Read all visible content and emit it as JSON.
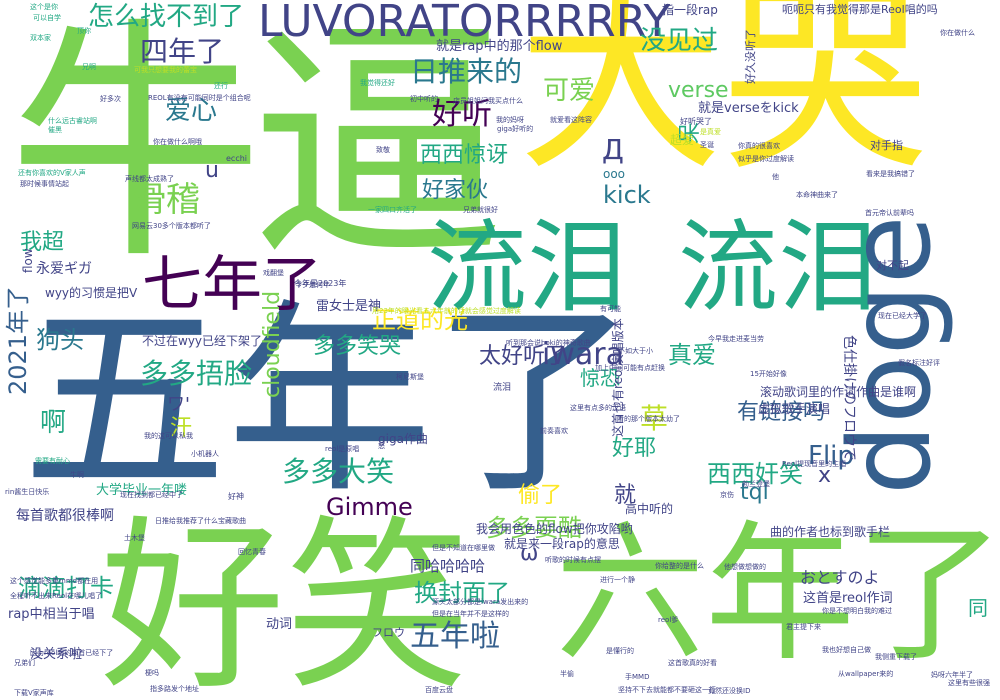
{
  "palette": [
    "#fde725",
    "#7ad151",
    "#22a884",
    "#2a788e",
    "#355f8d",
    "#414487",
    "#440154",
    "#5ec962",
    "#bddf26"
  ],
  "words": [
    "五年了",
    "大哭",
    "牛逼",
    "好笑",
    "六年了",
    "流泪",
    "流泪",
    "doge",
    "LUVORATORRRRRY",
    "七年了",
    "怎么找不到了",
    "四年了",
    "日推来的",
    "好听",
    "可爱",
    "没见过",
    "verse",
    "爱心",
    "滑稽",
    "西西惊讶",
    "好家伙",
    "我超",
    "正道的光",
    "多多笑哭",
    "狗头",
    "多多捂脸",
    "cloudfield",
    "太好听了",
    "惊恐",
    "真爱",
    "有链接吗",
    "iwara",
    "草",
    "2021年了",
    "啊",
    "汗",
    "好耶",
    "Flip",
    "多多大笑",
    "Gimme",
    "偷了",
    "就",
    "西西奸笑",
    "tql",
    "多多耍酷",
    "滴滴打卡",
    "换封面了",
    "五年啦",
    "同",
    "kick",
    "呆",
    "Д",
    "u",
    "ω",
    "x",
    "永爱ギガ",
    "ワ'",
    "おとすのよ",
    "同哈哈哈哈",
    "大学毕业一年喽",
    "每首歌都很棒啊",
    "rap中相当于唱",
    "没关系啦",
    "就是rap中的那个flow",
    "就是verseをkick",
    "这首是reol作词",
    "滚动歌词里的作词作曲是谁啊",
    "虚拟歌手演唱",
    "曲的作者也标到歌手栏",
    "我会用色色的flow把你攻陷哟",
    "就是来一段rap的意思",
    "不过在wyy已经下架了",
    "giga作曲",
    "雷女士是神",
    "wyy的习惯是把V",
    "色仕掛けのフロウで",
    "这首也有reol演唱版本",
    "超爱",
    "好久没听了",
    "指一段rap",
    "呃呃只有我觉得那是Reol唱的吗",
    "ooo",
    "对手指",
    "动词",
    "フロウ",
    "高中听的",
    "今年是2023年",
    "对不起",
    "好神",
    "flow",
    "这个是你",
    "可以自学",
    "双本家",
    "顶你",
    "兄啊",
    "可我只想要我的蕾宝",
    "还行",
    "什么远古睿站啊",
    "催黑",
    "REOL有没有可能同时是个组合呢",
    "你在做什么啊哦",
    "ecchi",
    "致敬",
    "我觉得还好",
    "初中听的",
    "店员姐姐问我买点什么",
    "我的妈呀",
    "giga好听的",
    "就爱看这阵容",
    "好听哭了",
    "是真爱",
    "圣诞",
    "你真的很喜欢",
    "似乎是你过度解读",
    "他",
    "看来是我搞错了",
    "本命神曲来了",
    "首元帝认前辈吗",
    "一家四口齐活了",
    "兄弟就很好",
    "还有你喜欢的V家人声",
    "那时候事情站起",
    "声线都太成熟了",
    "网易云30多个版本都听了",
    "戏翻堡",
    "今夕是何年",
    "用23年的眼光看五六年前的话就会感觉过度解读",
    "有可能",
    "现在已经大学了",
    "听到那会说boki的神奇歌曲",
    "今早我走进麦当劳",
    "不如大于小",
    "加上中间可能有点赶换",
    "15开始好像",
    "假名标注好评",
    "柯尼斯堡",
    "流泪",
    "这里有点多的汉语",
    "听的那个版本太幼了",
    "前奏喜欢",
    "小机器人",
    "需要有耐心",
    "我的这可以私我",
    "reol是原唱",
    "怒",
    "Reol提现音里的主唱",
    "勃兰登堡",
    "现在找到都已经中了",
    "rin酱生日快乐",
    "京伤",
    "牛啊",
    "日推给我推荐了什么宝藏歌曲",
    "土木堡",
    "回忆青春",
    "但是不知道在哪里做",
    "听歌的时候有点摆",
    "进行一个静",
    "你给整的是什么",
    "他想做想做的",
    "这个感觉能多重mmd都在用",
    "全程听不出来Reol在哪儿唱了",
    "源头太部分都是iwara发出来的",
    "是懂行的",
    "但是在当年并不是这样的",
    "你是不想明白我的难过",
    "君主提下来",
    "我也好想自己做",
    "我侧重下载了",
    "妈呀六年半了",
    "因为reol唱的那首已经下了",
    "兄弟们",
    "梗吗",
    "半偷",
    "这首歌真的好看",
    "从wallpaper来的",
    "下载V家声库",
    "指多路发个地址",
    "百度云盘",
    "坚持不下去就能都不要砸这一行",
    "手MMD",
    "竟然还没换ID",
    "这里有些很强",
    "reol爹",
    "好多次",
    "你在做什么",
    "明明"
  ]
}
